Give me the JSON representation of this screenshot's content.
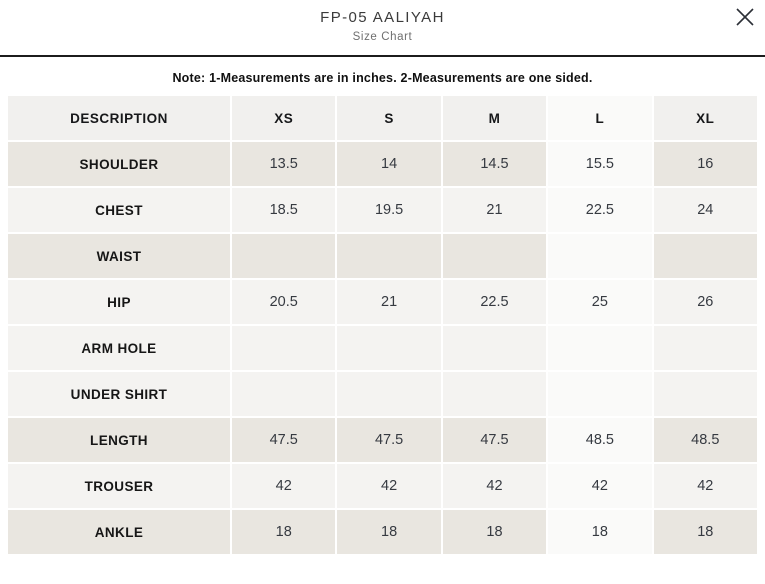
{
  "modal": {
    "title": "FP-05 AALIYAH",
    "subtitle": "Size Chart",
    "close_icon": "x-close"
  },
  "note": "Note: 1-Measurements are in inches. 2-Measurements are one sided.",
  "table": {
    "columns": [
      "DESCRIPTION",
      "XS",
      "S",
      "M",
      "L",
      "XL"
    ],
    "highlighted_column": "L",
    "rows": [
      {
        "label": "SHOULDER",
        "values": [
          "13.5",
          "14",
          "14.5",
          "15.5",
          "16"
        ],
        "shaded": true
      },
      {
        "label": "CHEST",
        "values": [
          "18.5",
          "19.5",
          "21",
          "22.5",
          "24"
        ],
        "shaded": false
      },
      {
        "label": "WAIST",
        "values": [
          "",
          "",
          "",
          "",
          ""
        ],
        "shaded": true
      },
      {
        "label": "HIP",
        "values": [
          "20.5",
          "21",
          "22.5",
          "25",
          "26"
        ],
        "shaded": false
      },
      {
        "label": "ARM HOLE",
        "values": [
          "",
          "",
          "",
          "",
          ""
        ],
        "shaded": false
      },
      {
        "label": "UNDER SHIRT",
        "values": [
          "",
          "",
          "",
          "",
          ""
        ],
        "shaded": false
      },
      {
        "label": "LENGTH",
        "values": [
          "47.5",
          "47.5",
          "47.5",
          "48.5",
          "48.5"
        ],
        "shaded": true
      },
      {
        "label": "TROUSER",
        "values": [
          "42",
          "42",
          "42",
          "42",
          "42"
        ],
        "shaded": false
      },
      {
        "label": "ANKLE",
        "values": [
          "18",
          "18",
          "18",
          "18",
          "18"
        ],
        "shaded": true
      }
    ]
  },
  "colors": {
    "divider": "#1c1c1c",
    "header_bg": "#f1f0ee",
    "row_shaded": "#e9e6e0",
    "row_light": "#f4f3f1",
    "highlight_col_bg": "#fafaf9",
    "value_text": "#363a41",
    "close_icon_color": "#2b2f36"
  }
}
